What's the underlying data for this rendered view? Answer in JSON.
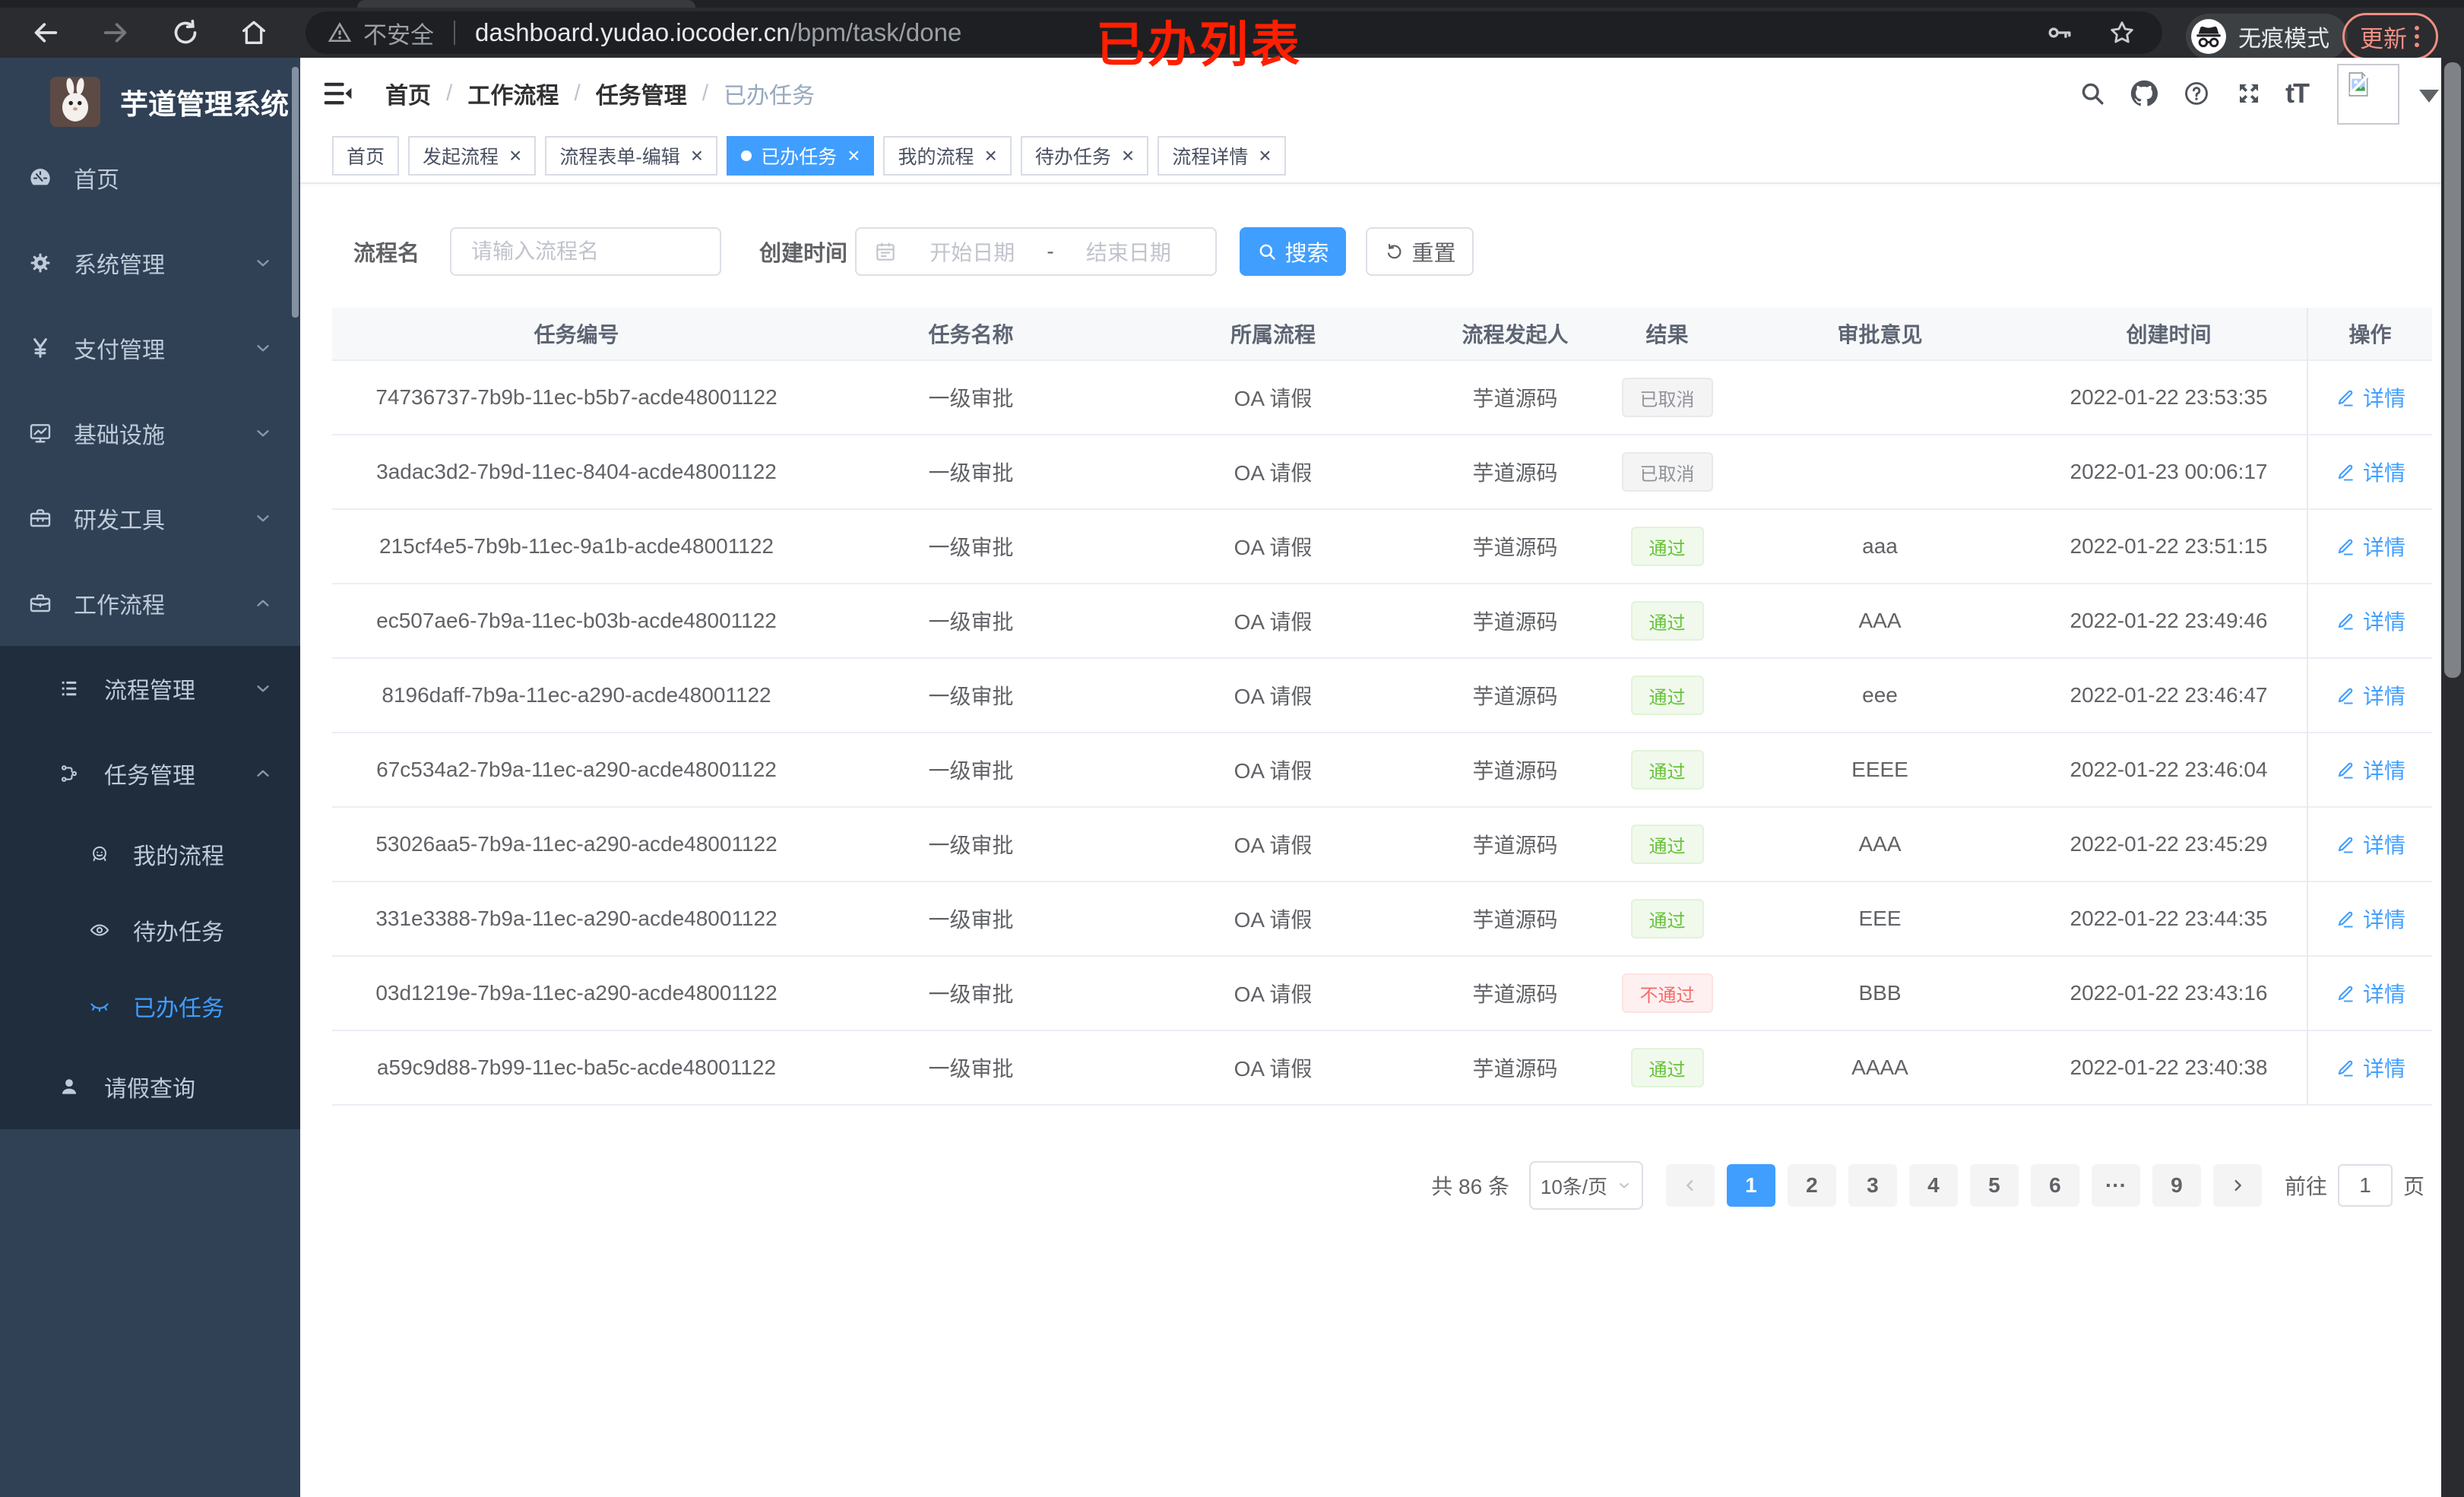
{
  "browser": {
    "annotation": "已办列表",
    "security_label": "不安全",
    "url_host": "dashboard.yudao.iocoder.cn",
    "url_path": "/bpm/task/done",
    "incognito_label": "无痕模式",
    "update_label": "更新"
  },
  "sidebar": {
    "logo_title": "芋道管理系统",
    "menu": [
      {
        "key": "home",
        "label": "首页",
        "icon": "dashboard-icon",
        "level": 1,
        "arrow": null,
        "dark": false,
        "active": false
      },
      {
        "key": "system",
        "label": "系统管理",
        "icon": "gear-icon",
        "level": 1,
        "arrow": "down",
        "dark": false,
        "active": false
      },
      {
        "key": "payment",
        "label": "支付管理",
        "icon": "yen-icon",
        "level": 1,
        "arrow": "down",
        "dark": false,
        "active": false
      },
      {
        "key": "infrastructure",
        "label": "基础设施",
        "icon": "monitor-icon",
        "level": 1,
        "arrow": "down",
        "dark": false,
        "active": false
      },
      {
        "key": "dev-tools",
        "label": "研发工具",
        "icon": "toolbox-icon",
        "level": 1,
        "arrow": "down",
        "dark": false,
        "active": false
      },
      {
        "key": "workflow",
        "label": "工作流程",
        "icon": "briefcase-icon",
        "level": 1,
        "arrow": "up",
        "dark": false,
        "active": false
      },
      {
        "key": "process-mgmt",
        "label": "流程管理",
        "icon": "list-tree-icon",
        "level": 2,
        "arrow": "down",
        "dark": true,
        "active": false
      },
      {
        "key": "task-mgmt",
        "label": "任务管理",
        "icon": "flow-icon",
        "level": 2,
        "arrow": "up",
        "dark": true,
        "active": false
      },
      {
        "key": "my-process",
        "label": "我的流程",
        "icon": "robot-icon",
        "level": 3,
        "arrow": null,
        "dark": true,
        "active": false
      },
      {
        "key": "todo-task",
        "label": "待办任务",
        "icon": "eye-icon",
        "level": 3,
        "arrow": null,
        "dark": true,
        "active": false
      },
      {
        "key": "done-task",
        "label": "已办任务",
        "icon": "eye-closed-icon",
        "level": 3,
        "arrow": null,
        "dark": true,
        "active": true
      },
      {
        "key": "leave-query",
        "label": "请假查询",
        "icon": "user-icon",
        "level": 2,
        "arrow": null,
        "dark": true,
        "active": false
      }
    ]
  },
  "navbar": {
    "breadcrumb": [
      "首页",
      "工作流程",
      "任务管理",
      "已办任务"
    ]
  },
  "tabs": [
    {
      "key": "home",
      "label": "首页",
      "closable": false,
      "active": false
    },
    {
      "key": "start-process",
      "label": "发起流程",
      "closable": true,
      "active": false
    },
    {
      "key": "form-edit",
      "label": "流程表单-编辑",
      "closable": true,
      "active": false
    },
    {
      "key": "done-task",
      "label": "已办任务",
      "closable": true,
      "active": true
    },
    {
      "key": "my-process",
      "label": "我的流程",
      "closable": true,
      "active": false
    },
    {
      "key": "todo-task",
      "label": "待办任务",
      "closable": true,
      "active": false
    },
    {
      "key": "process-detail",
      "label": "流程详情",
      "closable": true,
      "active": false
    }
  ],
  "filters": {
    "name_label": "流程名",
    "name_placeholder": "请输入流程名",
    "time_label": "创建时间",
    "start_placeholder": "开始日期",
    "range_separator": "-",
    "end_placeholder": "结束日期",
    "search_label": "搜索",
    "reset_label": "重置"
  },
  "table": {
    "columns": [
      "任务编号",
      "任务名称",
      "所属流程",
      "流程发起人",
      "结果",
      "审批意见",
      "创建时间",
      "操作"
    ],
    "detail_label": "详情",
    "rows": [
      {
        "id": "74736737-7b9b-11ec-b5b7-acde48001122",
        "name": "一级审批",
        "process": "OA 请假",
        "starter": "芋道源码",
        "result": "已取消",
        "result_type": "cancel",
        "comment": "",
        "created": "2022-01-22 23:53:35"
      },
      {
        "id": "3adac3d2-7b9d-11ec-8404-acde48001122",
        "name": "一级审批",
        "process": "OA 请假",
        "starter": "芋道源码",
        "result": "已取消",
        "result_type": "cancel",
        "comment": "",
        "created": "2022-01-23 00:06:17"
      },
      {
        "id": "215cf4e5-7b9b-11ec-9a1b-acde48001122",
        "name": "一级审批",
        "process": "OA 请假",
        "starter": "芋道源码",
        "result": "通过",
        "result_type": "pass",
        "comment": "aaa",
        "created": "2022-01-22 23:51:15"
      },
      {
        "id": "ec507ae6-7b9a-11ec-b03b-acde48001122",
        "name": "一级审批",
        "process": "OA 请假",
        "starter": "芋道源码",
        "result": "通过",
        "result_type": "pass",
        "comment": "AAA",
        "created": "2022-01-22 23:49:46"
      },
      {
        "id": "8196daff-7b9a-11ec-a290-acde48001122",
        "name": "一级审批",
        "process": "OA 请假",
        "starter": "芋道源码",
        "result": "通过",
        "result_type": "pass",
        "comment": "eee",
        "created": "2022-01-22 23:46:47"
      },
      {
        "id": "67c534a2-7b9a-11ec-a290-acde48001122",
        "name": "一级审批",
        "process": "OA 请假",
        "starter": "芋道源码",
        "result": "通过",
        "result_type": "pass",
        "comment": "EEEE",
        "created": "2022-01-22 23:46:04"
      },
      {
        "id": "53026aa5-7b9a-11ec-a290-acde48001122",
        "name": "一级审批",
        "process": "OA 请假",
        "starter": "芋道源码",
        "result": "通过",
        "result_type": "pass",
        "comment": "AAA",
        "created": "2022-01-22 23:45:29"
      },
      {
        "id": "331e3388-7b9a-11ec-a290-acde48001122",
        "name": "一级审批",
        "process": "OA 请假",
        "starter": "芋道源码",
        "result": "通过",
        "result_type": "pass",
        "comment": "EEE",
        "created": "2022-01-22 23:44:35"
      },
      {
        "id": "03d1219e-7b9a-11ec-a290-acde48001122",
        "name": "一级审批",
        "process": "OA 请假",
        "starter": "芋道源码",
        "result": "不通过",
        "result_type": "fail",
        "comment": "BBB",
        "created": "2022-01-22 23:43:16"
      },
      {
        "id": "a59c9d88-7b99-11ec-ba5c-acde48001122",
        "name": "一级审批",
        "process": "OA 请假",
        "starter": "芋道源码",
        "result": "通过",
        "result_type": "pass",
        "comment": "AAAA",
        "created": "2022-01-22 23:40:38"
      }
    ]
  },
  "pagination": {
    "total_label": "共 86 条",
    "page_size_label": "10条/页",
    "pages": [
      {
        "label": "1",
        "active": true
      },
      {
        "label": "2"
      },
      {
        "label": "3"
      },
      {
        "label": "4"
      },
      {
        "label": "5"
      },
      {
        "label": "6"
      },
      {
        "label": "···",
        "more": true
      },
      {
        "label": "9"
      }
    ],
    "goto_label": "前往",
    "goto_value": "1",
    "page_unit_label": "页"
  },
  "colors": {
    "primary": "#409eff",
    "success": "#67c23a",
    "danger": "#f56c6c",
    "info": "#909399",
    "sidebar_bg": "#304156",
    "sidebar_sub_bg": "#1f2d3d",
    "annotation": "#ff1f00"
  }
}
